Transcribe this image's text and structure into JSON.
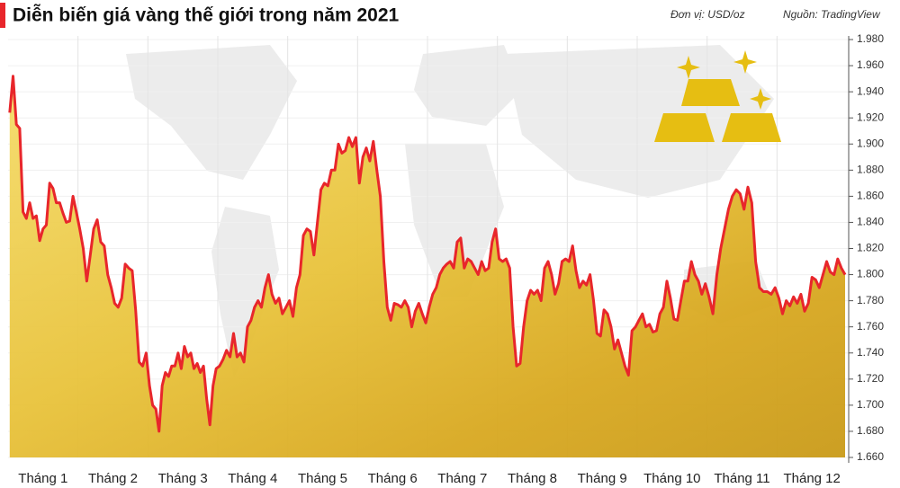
{
  "chart_data": {
    "type": "area",
    "title": "Diễn biến giá vàng thế giới trong năm 2021",
    "subtitle": "Đơn vị: USD/oz",
    "source": "Nguồn: TradingView",
    "color": "#e8262b",
    "grid": true,
    "categories": [
      "Tháng 1",
      "Tháng 2",
      "Tháng 3",
      "Tháng 4",
      "Tháng 5",
      "Tháng 6",
      "Tháng 7",
      "Tháng 8",
      "Tháng 9",
      "Tháng 10",
      "Tháng 11",
      "Tháng 12"
    ],
    "values": [
      [
        1924,
        1952,
        1915,
        1912,
        1848,
        1843,
        1855,
        1843,
        1845,
        1826,
        1835,
        1838,
        1870,
        1866,
        1855,
        1855,
        1847,
        1840,
        1841,
        1860,
        1848
      ],
      [
        1835,
        1820,
        1795,
        1815,
        1835,
        1842,
        1825,
        1822,
        1800,
        1790,
        1778,
        1775,
        1782,
        1808,
        1805,
        1803,
        1773,
        1733,
        1730,
        1740
      ],
      [
        1715,
        1700,
        1697,
        1680,
        1715,
        1725,
        1722,
        1730,
        1730,
        1740,
        1728,
        1745,
        1737,
        1740,
        1728,
        1732,
        1725,
        1730,
        1705,
        1685,
        1715,
        1728
      ],
      [
        1730,
        1735,
        1742,
        1737,
        1755,
        1737,
        1740,
        1733,
        1760,
        1765,
        1775,
        1780,
        1775,
        1790,
        1800,
        1785,
        1778,
        1782,
        1770,
        1775
      ],
      [
        1780,
        1768,
        1790,
        1800,
        1830,
        1835,
        1833,
        1815,
        1840,
        1865,
        1870,
        1868,
        1880,
        1880,
        1900,
        1893,
        1895,
        1905,
        1898,
        1905
      ],
      [
        1870,
        1890,
        1897,
        1887,
        1902,
        1880,
        1860,
        1810,
        1775,
        1765,
        1778,
        1777,
        1775,
        1780,
        1775,
        1760,
        1772,
        1778,
        1770,
        1763
      ],
      [
        1775,
        1785,
        1790,
        1800,
        1805,
        1808,
        1810,
        1805,
        1825,
        1828,
        1805,
        1812,
        1810,
        1805,
        1800,
        1810,
        1803,
        1805,
        1825,
        1835
      ],
      [
        1812,
        1810,
        1812,
        1805,
        1760,
        1730,
        1732,
        1760,
        1780,
        1788,
        1785,
        1788,
        1780,
        1805,
        1810,
        1800,
        1785,
        1793,
        1810,
        1812
      ],
      [
        1810,
        1822,
        1803,
        1790,
        1795,
        1792,
        1800,
        1780,
        1755,
        1753,
        1773,
        1770,
        1760,
        1743,
        1750,
        1740,
        1730,
        1723,
        1757,
        1760
      ],
      [
        1765,
        1770,
        1760,
        1762,
        1756,
        1757,
        1770,
        1775,
        1795,
        1782,
        1766,
        1765,
        1780,
        1795,
        1795,
        1810,
        1800,
        1795,
        1785,
        1793
      ],
      [
        1783,
        1770,
        1800,
        1820,
        1835,
        1850,
        1860,
        1865,
        1862,
        1850,
        1867,
        1855,
        1810,
        1790,
        1787,
        1787,
        1785,
        1790
      ],
      [
        1782,
        1770,
        1780,
        1776,
        1783,
        1778,
        1785,
        1772,
        1778,
        1798,
        1796,
        1790,
        1800,
        1810,
        1802,
        1800,
        1812,
        1805,
        1800
      ]
    ],
    "ylim": [
      1660,
      1980
    ],
    "yticks": [
      {
        "value": 1660,
        "label": "1.660"
      },
      {
        "value": 1680,
        "label": "1.680"
      },
      {
        "value": 1700,
        "label": "1.700"
      },
      {
        "value": 1720,
        "label": "1.720"
      },
      {
        "value": 1740,
        "label": "1.740"
      },
      {
        "value": 1760,
        "label": "1.760"
      },
      {
        "value": 1780,
        "label": "1.780"
      },
      {
        "value": 1800,
        "label": "1.800"
      },
      {
        "value": 1820,
        "label": "1.820"
      },
      {
        "value": 1840,
        "label": "1.840"
      },
      {
        "value": 1860,
        "label": "1.860"
      },
      {
        "value": 1880,
        "label": "1.880"
      },
      {
        "value": 1900,
        "label": "1.900"
      },
      {
        "value": 1920,
        "label": "1.920"
      },
      {
        "value": 1940,
        "label": "1.940"
      },
      {
        "value": 1960,
        "label": "1.960"
      },
      {
        "value": 1980,
        "label": "1.980"
      }
    ]
  }
}
